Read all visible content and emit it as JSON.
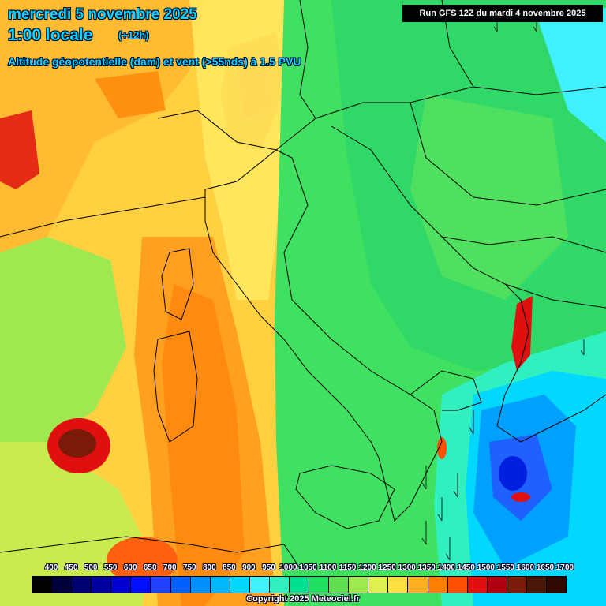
{
  "header": {
    "date": "mercredi 5 novembre 2025",
    "time": "1:00 locale",
    "lead": "(+12h)",
    "variable": "Altitude géopotentielle (dam) et vent (>55nds) à 1.5 PVU",
    "run": "Run GFS 12Z du mardi 4 novembre 2025"
  },
  "legend": {
    "labels": [
      "400",
      "450",
      "500",
      "550",
      "600",
      "650",
      "700",
      "750",
      "800",
      "850",
      "900",
      "950",
      "1000",
      "1050",
      "1100",
      "1150",
      "1200",
      "1250",
      "1300",
      "1350",
      "1400",
      "1450",
      "1500",
      "1550",
      "1600",
      "1650",
      "1700"
    ],
    "colors": [
      "#000000",
      "#00003a",
      "#000070",
      "#0000a0",
      "#0000d0",
      "#0010ff",
      "#2040ff",
      "#0060ff",
      "#0090ff",
      "#00b8ff",
      "#00d8ff",
      "#40f0ff",
      "#30f0c0",
      "#00e090",
      "#20e060",
      "#60e050",
      "#a0e850",
      "#e0f050",
      "#ffe040",
      "#ffb020",
      "#ff8000",
      "#ff5000",
      "#e01010",
      "#b00010",
      "#7a1a08",
      "#4a1808",
      "#300800"
    ]
  },
  "copyright": "Copyright 2025 Meteociel.fr"
}
